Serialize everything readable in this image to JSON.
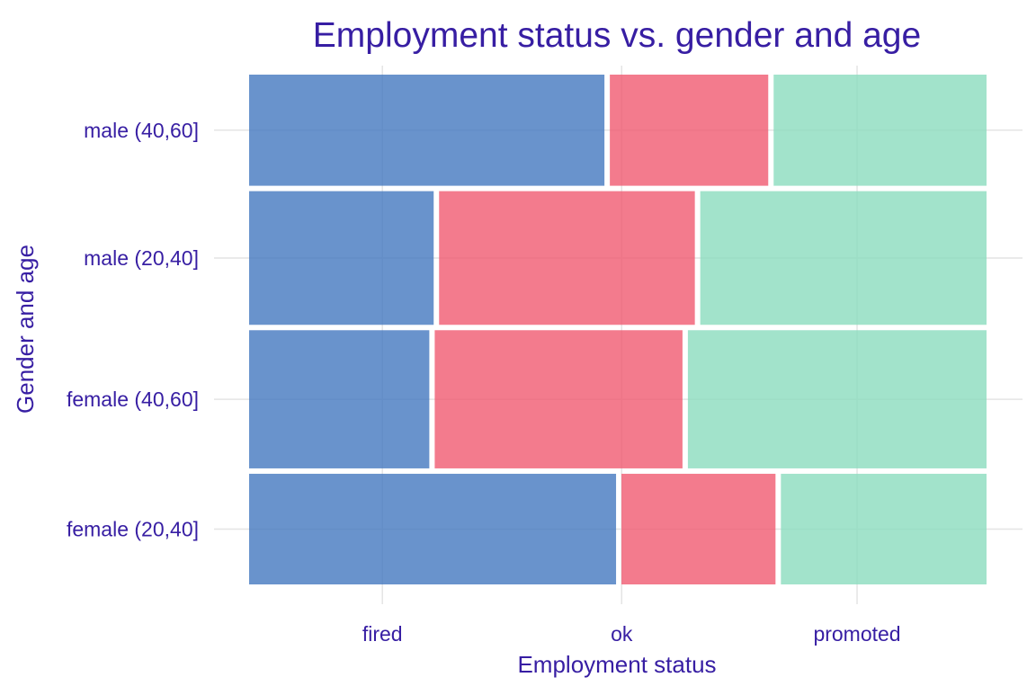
{
  "colors": {
    "text": "#371ea3",
    "grid": "#e4e4e4",
    "fired": "#4378bf",
    "ok": "#f05a71",
    "promoted": "#8bdcbe",
    "background": "#ffffff"
  },
  "chart_data": {
    "type": "mosaic",
    "title": "Employment status vs. gender and age",
    "xlabel": "Employment status",
    "ylabel": "Gender and age",
    "grid": true,
    "legend": "none",
    "x_categories": [
      "fired",
      "ok",
      "promoted"
    ],
    "x_tick_labels": [
      "fired",
      "ok",
      "promoted"
    ],
    "y_categories": [
      "female (20,40]",
      "female (40,60]",
      "male (20,40]",
      "male (40,60]"
    ],
    "y_tick_labels": [
      "female (20,40]",
      "female (40,60]",
      "male (20,40]",
      "male (40,60]"
    ],
    "row_share": [
      0.221,
      0.276,
      0.267,
      0.222
    ],
    "rows": [
      {
        "group": "female (20,40]",
        "fired": 0.505,
        "ok": 0.212,
        "promoted": 0.283
      },
      {
        "group": "female (40,60]",
        "fired": 0.248,
        "ok": 0.341,
        "promoted": 0.411
      },
      {
        "group": "male (20,40]",
        "fired": 0.254,
        "ok": 0.352,
        "promoted": 0.394
      },
      {
        "group": "male (40,60]",
        "fired": 0.489,
        "ok": 0.218,
        "promoted": 0.293
      }
    ]
  }
}
